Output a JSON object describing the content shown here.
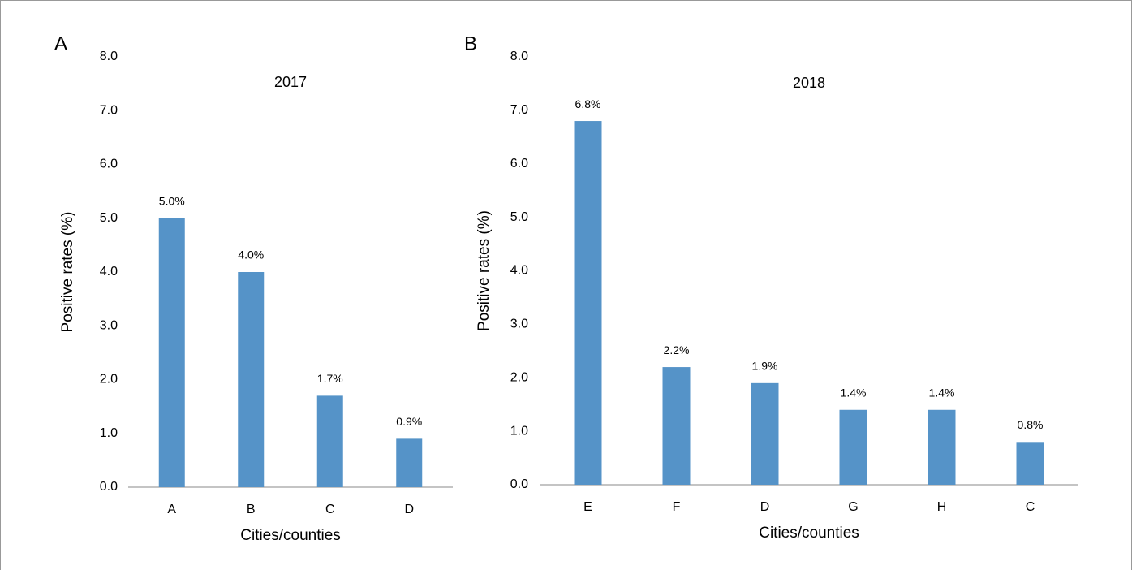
{
  "chart_data": [
    {
      "type": "bar",
      "panel": "A",
      "title": "2017",
      "y_label": "Positive rates (%)",
      "x_label": "Cities/counties",
      "categories": [
        "A",
        "B",
        "C",
        "D"
      ],
      "values": [
        5.0,
        4.0,
        1.7,
        0.9
      ],
      "value_labels": [
        "5.0%",
        "4.0%",
        "1.7%",
        "0.9%"
      ],
      "color": "#5593c8",
      "grid": false,
      "ylim": [
        0,
        8
      ],
      "yticks": [
        {
          "value": 0,
          "label": "0.0"
        },
        {
          "value": 1,
          "label": "1.0"
        },
        {
          "value": 2,
          "label": "2.0"
        },
        {
          "value": 3,
          "label": "3.0"
        },
        {
          "value": 4,
          "label": "4.0"
        },
        {
          "value": 5,
          "label": "5.0"
        },
        {
          "value": 6,
          "label": "6.0"
        },
        {
          "value": 7,
          "label": "7.0"
        },
        {
          "value": 8,
          "label": "8.0"
        }
      ]
    },
    {
      "type": "bar",
      "panel": "B",
      "title": "2018",
      "y_label": "Positive rates (%)",
      "x_label": "Cities/counties",
      "categories": [
        "E",
        "F",
        "D",
        "G",
        "H",
        "C"
      ],
      "values": [
        6.8,
        2.2,
        1.9,
        1.4,
        1.4,
        0.8
      ],
      "value_labels": [
        "6.8%",
        "2.2%",
        "1.9%",
        "1.4%",
        "1.4%",
        "0.8%"
      ],
      "color": "#5593c8",
      "grid": false,
      "ylim": [
        0,
        8
      ],
      "yticks": [
        {
          "value": 0,
          "label": "0.0"
        },
        {
          "value": 1,
          "label": "1.0"
        },
        {
          "value": 2,
          "label": "2.0"
        },
        {
          "value": 3,
          "label": "3.0"
        },
        {
          "value": 4,
          "label": "4.0"
        },
        {
          "value": 5,
          "label": "5.0"
        },
        {
          "value": 6,
          "label": "6.0"
        },
        {
          "value": 7,
          "label": "7.0"
        },
        {
          "value": 8,
          "label": "8.0"
        }
      ]
    }
  ]
}
